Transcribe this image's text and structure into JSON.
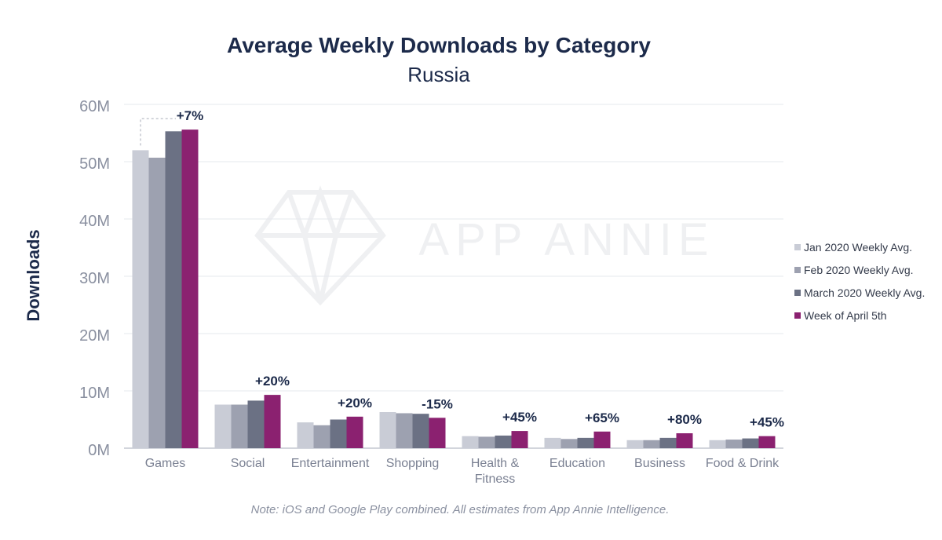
{
  "chart_data": {
    "type": "bar",
    "title": "Average Weekly Downloads by Category",
    "subtitle": "Russia",
    "xlabel": "",
    "ylabel": "Downloads",
    "ylim": [
      0,
      60
    ],
    "y_ticks": [
      {
        "value": 0,
        "label": "0M"
      },
      {
        "value": 10,
        "label": "10M"
      },
      {
        "value": 20,
        "label": "20M"
      },
      {
        "value": 30,
        "label": "30M"
      },
      {
        "value": 40,
        "label": "40M"
      },
      {
        "value": 50,
        "label": "50M"
      },
      {
        "value": 60,
        "label": "60M"
      }
    ],
    "categories": [
      "Games",
      "Social",
      "Entertainment",
      "Shopping",
      "Health & Fitness",
      "Education",
      "Business",
      "Food & Drink"
    ],
    "series": [
      {
        "name": "Jan 2020 Weekly Avg.",
        "color": "#c9ccd6",
        "values": [
          52.0,
          7.6,
          4.5,
          6.3,
          2.1,
          1.8,
          1.4,
          1.4
        ]
      },
      {
        "name": "Feb 2020 Weekly Avg.",
        "color": "#9da1b0",
        "values": [
          50.7,
          7.6,
          4.0,
          6.1,
          2.0,
          1.6,
          1.4,
          1.5
        ]
      },
      {
        "name": "March 2020 Weekly Avg.",
        "color": "#6b7184",
        "values": [
          55.3,
          8.3,
          5.0,
          6.0,
          2.2,
          1.8,
          1.8,
          1.7
        ]
      },
      {
        "name": "Week of April 5th",
        "color": "#8b2170",
        "values": [
          55.6,
          9.3,
          5.5,
          5.3,
          3.0,
          2.9,
          2.6,
          2.1
        ]
      }
    ],
    "annotations": [
      "+7%",
      "+20%",
      "+20%",
      "-15%",
      "+45%",
      "+65%",
      "+80%",
      "+45%"
    ],
    "grid": true,
    "legend_position": "right"
  },
  "watermark": "APP ANNIE",
  "note": "Note: iOS and Google Play combined. All estimates from App Annie Intelligence."
}
